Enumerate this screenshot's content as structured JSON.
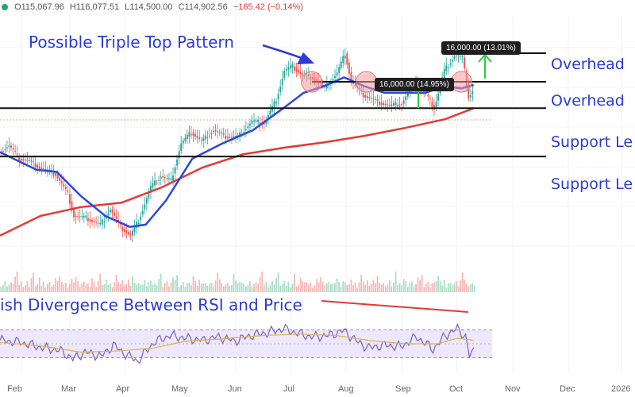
{
  "ohlc_bar": {
    "open": "O115,067.96",
    "high": "H116,077.51",
    "low": "L114,500.00",
    "close": "C114,902.56",
    "change": "−165.42 (−0.14%)",
    "up_color": "#2aa36b",
    "down_color": "#e53935"
  },
  "annotations": {
    "title": "Possible Triple Top Pattern",
    "rsi_note": "ish Divergence Between RSI and Price",
    "overhead_1": "Overhead",
    "overhead_2": "Overhead",
    "support_1": "Support Le",
    "support_2": "Support Le",
    "measure_1": "16,000.00 (14.95%)",
    "measure_2": "16,000.00 (13.01%)"
  },
  "colors": {
    "annotation_text": "#2c3bd6",
    "ma_short": "#2c48e0",
    "ma_long": "#e53935",
    "rsi_line": "#7b61c9",
    "rsi_ma": "#e0b44a",
    "arrow_green": "#2ecc40",
    "circle": "#f2999c"
  },
  "chart_data": {
    "type": "candlestick",
    "x_axis_labels": [
      "Feb",
      "Mar",
      "Apr",
      "May",
      "Jun",
      "Jul",
      "Aug",
      "Sep",
      "Oct",
      "Nov",
      "Dec",
      "2026"
    ],
    "price_path": [
      [
        0,
        101000
      ],
      [
        5,
        102500
      ],
      [
        10,
        99500
      ],
      [
        15,
        99000
      ],
      [
        20,
        97500
      ],
      [
        28,
        96000
      ],
      [
        34,
        91500
      ],
      [
        37,
        86500
      ],
      [
        43,
        86000
      ],
      [
        50,
        84500
      ],
      [
        55,
        88000
      ],
      [
        60,
        84000
      ],
      [
        65,
        82000
      ],
      [
        69,
        85500
      ],
      [
        75,
        93000
      ],
      [
        80,
        95500
      ],
      [
        85,
        94500
      ],
      [
        90,
        103000
      ],
      [
        95,
        105500
      ],
      [
        100,
        103500
      ],
      [
        106,
        106000
      ],
      [
        112,
        104500
      ],
      [
        118,
        104500
      ],
      [
        125,
        108000
      ],
      [
        131,
        107500
      ],
      [
        137,
        113000
      ],
      [
        141,
        119500
      ],
      [
        145,
        120500
      ],
      [
        150,
        118500
      ],
      [
        155,
        118000
      ],
      [
        161,
        115500
      ],
      [
        167,
        119000
      ],
      [
        171,
        123500
      ],
      [
        174,
        117000
      ],
      [
        180,
        114000
      ],
      [
        187,
        112500
      ],
      [
        193,
        111500
      ],
      [
        199,
        112000
      ],
      [
        205,
        117000
      ],
      [
        211,
        114000
      ],
      [
        215,
        111000
      ],
      [
        220,
        119500
      ],
      [
        225,
        123000
      ],
      [
        229,
        122500
      ],
      [
        232,
        113500
      ],
      [
        234,
        114900
      ]
    ],
    "moving_average_short": [
      [
        0,
        101000
      ],
      [
        18,
        97000
      ],
      [
        28,
        96500
      ],
      [
        40,
        91000
      ],
      [
        52,
        86500
      ],
      [
        64,
        84000
      ],
      [
        72,
        84500
      ],
      [
        82,
        90000
      ],
      [
        95,
        99500
      ],
      [
        110,
        103000
      ],
      [
        125,
        106000
      ],
      [
        140,
        111000
      ],
      [
        150,
        114500
      ],
      [
        160,
        116000
      ],
      [
        170,
        118000
      ],
      [
        180,
        116000
      ],
      [
        190,
        114500
      ],
      [
        200,
        114500
      ],
      [
        210,
        114500
      ],
      [
        220,
        116000
      ],
      [
        228,
        115500
      ],
      [
        234,
        116300
      ]
    ],
    "moving_average_long": [
      [
        0,
        82000
      ],
      [
        20,
        86500
      ],
      [
        40,
        88500
      ],
      [
        60,
        89500
      ],
      [
        80,
        93000
      ],
      [
        100,
        97500
      ],
      [
        120,
        100500
      ],
      [
        140,
        102000
      ],
      [
        160,
        103200
      ],
      [
        180,
        104700
      ],
      [
        200,
        106500
      ],
      [
        220,
        108500
      ],
      [
        234,
        111000
      ]
    ],
    "horizontal_levels": [
      {
        "label": "Overhead",
        "value": 123500
      },
      {
        "label": "Overhead",
        "value": 117000
      },
      {
        "label": "Support Le",
        "value": 111000
      },
      {
        "label": "Support Le",
        "value": 100000
      }
    ],
    "rsi": {
      "upper_band": 70,
      "lower_band": 30,
      "ylim": [
        10,
        90
      ],
      "rsi_path": [
        [
          0,
          55
        ],
        [
          10,
          52
        ],
        [
          20,
          45
        ],
        [
          30,
          40
        ],
        [
          36,
          28
        ],
        [
          42,
          38
        ],
        [
          50,
          32
        ],
        [
          56,
          48
        ],
        [
          62,
          35
        ],
        [
          68,
          25
        ],
        [
          76,
          52
        ],
        [
          84,
          62
        ],
        [
          92,
          58
        ],
        [
          100,
          55
        ],
        [
          108,
          60
        ],
        [
          116,
          54
        ],
        [
          124,
          62
        ],
        [
          132,
          66
        ],
        [
          140,
          72
        ],
        [
          146,
          66
        ],
        [
          154,
          60
        ],
        [
          162,
          62
        ],
        [
          170,
          69
        ],
        [
          176,
          54
        ],
        [
          182,
          44
        ],
        [
          190,
          48
        ],
        [
          198,
          46
        ],
        [
          206,
          60
        ],
        [
          214,
          42
        ],
        [
          220,
          62
        ],
        [
          226,
          72
        ],
        [
          230,
          60
        ],
        [
          232,
          32
        ],
        [
          234,
          40
        ]
      ],
      "rsi_ma_path": [
        [
          0,
          52
        ],
        [
          20,
          47
        ],
        [
          40,
          38
        ],
        [
          60,
          40
        ],
        [
          76,
          44
        ],
        [
          92,
          54
        ],
        [
          110,
          57
        ],
        [
          130,
          62
        ],
        [
          148,
          64
        ],
        [
          166,
          62
        ],
        [
          182,
          55
        ],
        [
          200,
          50
        ],
        [
          216,
          50
        ],
        [
          226,
          58
        ],
        [
          234,
          55
        ]
      ]
    },
    "volume_values": [
      22,
      30,
      18,
      26,
      15,
      34,
      20,
      24,
      40,
      28,
      18,
      22,
      16,
      30,
      24,
      36,
      20,
      26,
      18,
      30,
      22,
      28,
      19,
      25,
      34,
      20,
      28,
      18,
      24,
      30,
      20,
      26,
      22,
      44,
      28,
      18,
      24,
      20,
      30,
      26,
      18,
      22,
      28,
      34,
      20,
      26,
      24,
      18,
      60,
      30
    ],
    "ylim": [
      76000,
      132000
    ]
  }
}
